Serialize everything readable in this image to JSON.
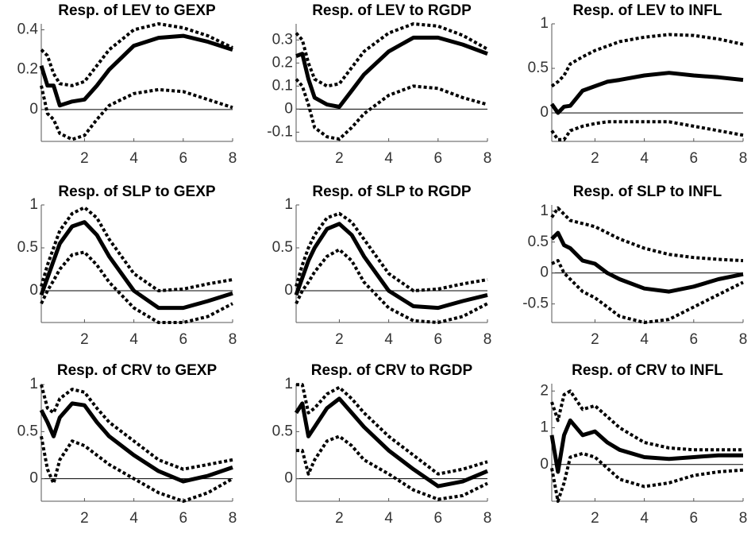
{
  "chart_data": [
    {
      "type": "line",
      "title": "Resp. of LEV to GEXP",
      "x": [
        0.25,
        0.5,
        0.75,
        1,
        1.5,
        2,
        2.5,
        3,
        4,
        5,
        6,
        7,
        8
      ],
      "xlim": [
        0.25,
        8
      ],
      "xticks": [
        2,
        4,
        6,
        8
      ],
      "ylim": [
        -0.16,
        0.43
      ],
      "yticks": [
        0,
        0.2,
        0.4
      ],
      "series": [
        {
          "color": "#000000",
          "dash": false,
          "values": [
            0.22,
            0.12,
            0.12,
            0.02,
            0.04,
            0.05,
            0.12,
            0.2,
            0.32,
            0.36,
            0.37,
            0.34,
            0.3
          ]
        },
        {
          "color": "#000000",
          "dash": true,
          "values": [
            0.3,
            0.27,
            0.18,
            0.13,
            0.12,
            0.14,
            0.22,
            0.3,
            0.4,
            0.43,
            0.41,
            0.37,
            0.31
          ]
        },
        {
          "color": "#000000",
          "dash": true,
          "values": [
            0.12,
            -0.02,
            -0.05,
            -0.12,
            -0.15,
            -0.13,
            -0.05,
            0.02,
            0.08,
            0.1,
            0.09,
            0.05,
            0.01
          ]
        }
      ]
    },
    {
      "type": "line",
      "title": "Resp. of LEV to RGDP",
      "x": [
        0.25,
        0.5,
        0.75,
        1,
        1.5,
        2,
        2.5,
        3,
        4,
        5,
        6,
        7,
        8
      ],
      "xlim": [
        0.25,
        8
      ],
      "xticks": [
        2,
        4,
        6,
        8
      ],
      "ylim": [
        -0.14,
        0.37
      ],
      "yticks": [
        -0.1,
        0,
        0.1,
        0.2,
        0.3
      ],
      "series": [
        {
          "color": "#000000",
          "dash": false,
          "values": [
            0.23,
            0.24,
            0.13,
            0.05,
            0.02,
            0.01,
            0.08,
            0.15,
            0.25,
            0.31,
            0.31,
            0.28,
            0.24
          ]
        },
        {
          "color": "#000000",
          "dash": true,
          "values": [
            0.33,
            0.3,
            0.2,
            0.13,
            0.1,
            0.11,
            0.18,
            0.25,
            0.33,
            0.37,
            0.36,
            0.32,
            0.26
          ]
        },
        {
          "color": "#000000",
          "dash": true,
          "values": [
            0.13,
            0.1,
            0.02,
            -0.08,
            -0.12,
            -0.13,
            -0.08,
            -0.02,
            0.06,
            0.1,
            0.09,
            0.05,
            0.02
          ]
        }
      ]
    },
    {
      "type": "line",
      "title": "Resp. of LEV to INFL",
      "x": [
        0.25,
        0.5,
        0.75,
        1,
        1.5,
        2,
        2.5,
        3,
        4,
        5,
        6,
        7,
        8
      ],
      "xlim": [
        0.25,
        8
      ],
      "xticks": [
        2,
        4,
        6,
        8
      ],
      "ylim": [
        -0.32,
        1
      ],
      "yticks": [
        0,
        0.5,
        1
      ],
      "series": [
        {
          "color": "#000000",
          "dash": false,
          "values": [
            0.1,
            0.0,
            0.07,
            0.08,
            0.25,
            0.3,
            0.35,
            0.37,
            0.42,
            0.45,
            0.42,
            0.4,
            0.37
          ]
        },
        {
          "color": "#000000",
          "dash": true,
          "values": [
            0.3,
            0.35,
            0.42,
            0.55,
            0.63,
            0.7,
            0.75,
            0.8,
            0.85,
            0.88,
            0.87,
            0.83,
            0.77
          ]
        },
        {
          "color": "#000000",
          "dash": true,
          "values": [
            -0.2,
            -0.3,
            -0.3,
            -0.2,
            -0.15,
            -0.12,
            -0.1,
            -0.1,
            -0.1,
            -0.1,
            -0.15,
            -0.2,
            -0.25
          ]
        }
      ]
    },
    {
      "type": "line",
      "title": "Resp. of SLP to GEXP",
      "x": [
        0.25,
        0.5,
        0.75,
        1,
        1.5,
        2,
        2.5,
        3,
        4,
        5,
        6,
        7,
        8
      ],
      "xlim": [
        0.25,
        8
      ],
      "xticks": [
        2,
        4,
        6,
        8
      ],
      "ylim": [
        -0.37,
        1
      ],
      "yticks": [
        0,
        0.5,
        1
      ],
      "series": [
        {
          "color": "#000000",
          "dash": false,
          "values": [
            -0.05,
            0.15,
            0.35,
            0.55,
            0.75,
            0.8,
            0.65,
            0.4,
            0,
            -0.2,
            -0.2,
            -0.12,
            -0.03
          ]
        },
        {
          "color": "#000000",
          "dash": true,
          "values": [
            0.05,
            0.3,
            0.5,
            0.7,
            0.9,
            0.97,
            0.85,
            0.6,
            0.2,
            0,
            0.02,
            0.08,
            0.13
          ]
        },
        {
          "color": "#000000",
          "dash": true,
          "values": [
            -0.15,
            0,
            0.12,
            0.25,
            0.42,
            0.45,
            0.3,
            0.1,
            -0.2,
            -0.37,
            -0.37,
            -0.3,
            -0.15
          ]
        }
      ]
    },
    {
      "type": "line",
      "title": "Resp. of SLP to RGDP",
      "x": [
        0.25,
        0.5,
        0.75,
        1,
        1.5,
        2,
        2.5,
        3,
        4,
        5,
        6,
        7,
        8
      ],
      "xlim": [
        0.25,
        8
      ],
      "xticks": [
        2,
        4,
        6,
        8
      ],
      "ylim": [
        -0.37,
        1
      ],
      "yticks": [
        0,
        0.5,
        1
      ],
      "series": [
        {
          "color": "#000000",
          "dash": false,
          "values": [
            -0.05,
            0.15,
            0.35,
            0.5,
            0.72,
            0.78,
            0.65,
            0.4,
            0,
            -0.18,
            -0.2,
            -0.12,
            -0.05
          ]
        },
        {
          "color": "#000000",
          "dash": true,
          "values": [
            0.05,
            0.3,
            0.5,
            0.65,
            0.85,
            0.9,
            0.8,
            0.6,
            0.2,
            0,
            0.02,
            0.08,
            0.13
          ]
        },
        {
          "color": "#000000",
          "dash": true,
          "values": [
            -0.15,
            0,
            0.1,
            0.22,
            0.4,
            0.48,
            0.35,
            0.1,
            -0.2,
            -0.35,
            -0.37,
            -0.3,
            -0.15
          ]
        }
      ]
    },
    {
      "type": "line",
      "title": "Resp. of SLP to INFL",
      "x": [
        0.25,
        0.5,
        0.75,
        1,
        1.5,
        2,
        2.5,
        3,
        4,
        5,
        6,
        7,
        8
      ],
      "xlim": [
        0.25,
        8
      ],
      "xticks": [
        2,
        4,
        6,
        8
      ],
      "ylim": [
        -0.8,
        1.1
      ],
      "yticks": [
        -0.5,
        0,
        0.5,
        1
      ],
      "series": [
        {
          "color": "#000000",
          "dash": false,
          "values": [
            0.55,
            0.65,
            0.45,
            0.4,
            0.2,
            0.15,
            0,
            -0.1,
            -0.25,
            -0.3,
            -0.22,
            -0.1,
            -0.02
          ]
        },
        {
          "color": "#000000",
          "dash": true,
          "values": [
            0.9,
            1.05,
            0.95,
            0.85,
            0.8,
            0.75,
            0.65,
            0.55,
            0.4,
            0.3,
            0.25,
            0.22,
            0.2
          ]
        },
        {
          "color": "#000000",
          "dash": true,
          "values": [
            0.15,
            0.2,
            0.0,
            -0.1,
            -0.3,
            -0.4,
            -0.55,
            -0.7,
            -0.8,
            -0.75,
            -0.55,
            -0.35,
            -0.15
          ]
        }
      ]
    },
    {
      "type": "line",
      "title": "Resp. of CRV to GEXP",
      "x": [
        0.25,
        0.5,
        0.75,
        1,
        1.5,
        2,
        2.5,
        3,
        4,
        5,
        6,
        7,
        8
      ],
      "xlim": [
        0.25,
        8
      ],
      "xticks": [
        2,
        4,
        6,
        8
      ],
      "ylim": [
        -0.24,
        1.01
      ],
      "yticks": [
        0,
        0.5,
        1
      ],
      "series": [
        {
          "color": "#000000",
          "dash": false,
          "values": [
            0.73,
            0.6,
            0.45,
            0.65,
            0.8,
            0.78,
            0.6,
            0.45,
            0.25,
            0.08,
            -0.03,
            0.03,
            0.12
          ]
        },
        {
          "color": "#000000",
          "dash": true,
          "values": [
            1.0,
            0.75,
            0.7,
            0.85,
            0.95,
            0.92,
            0.75,
            0.6,
            0.4,
            0.2,
            0.1,
            0.15,
            0.2
          ]
        },
        {
          "color": "#000000",
          "dash": true,
          "values": [
            0.45,
            0.1,
            -0.05,
            0.2,
            0.4,
            0.35,
            0.25,
            0.15,
            0,
            -0.15,
            -0.24,
            -0.15,
            0.0
          ]
        }
      ]
    },
    {
      "type": "line",
      "title": "Resp. of CRV to RGDP",
      "x": [
        0.25,
        0.5,
        0.75,
        1,
        1.5,
        2,
        2.5,
        3,
        4,
        5,
        6,
        7,
        8
      ],
      "xlim": [
        0.25,
        8
      ],
      "xticks": [
        2,
        4,
        6,
        8
      ],
      "ylim": [
        -0.24,
        1.01
      ],
      "yticks": [
        0,
        0.5,
        1
      ],
      "series": [
        {
          "color": "#000000",
          "dash": false,
          "values": [
            0.7,
            0.8,
            0.45,
            0.55,
            0.75,
            0.85,
            0.7,
            0.55,
            0.3,
            0.1,
            -0.08,
            -0.03,
            0.08
          ]
        },
        {
          "color": "#000000",
          "dash": true,
          "values": [
            1.0,
            1.0,
            0.7,
            0.75,
            0.9,
            0.97,
            0.85,
            0.7,
            0.45,
            0.25,
            0.05,
            0.1,
            0.18
          ]
        },
        {
          "color": "#000000",
          "dash": true,
          "values": [
            0.3,
            0.3,
            0.05,
            0.2,
            0.4,
            0.45,
            0.35,
            0.2,
            0.05,
            -0.12,
            -0.22,
            -0.18,
            -0.05
          ]
        }
      ]
    },
    {
      "type": "line",
      "title": "Resp. of CRV to INFL",
      "x": [
        0.25,
        0.5,
        0.75,
        1,
        1.5,
        2,
        2.5,
        3,
        4,
        5,
        6,
        7,
        8
      ],
      "xlim": [
        0.25,
        8
      ],
      "xticks": [
        2,
        4,
        6,
        8
      ],
      "ylim": [
        -1,
        2.2
      ],
      "yticks": [
        0,
        1,
        2
      ],
      "series": [
        {
          "color": "#000000",
          "dash": false,
          "values": [
            0.8,
            -0.2,
            0.8,
            1.2,
            0.8,
            0.9,
            0.6,
            0.4,
            0.2,
            0.15,
            0.2,
            0.25,
            0.25
          ]
        },
        {
          "color": "#000000",
          "dash": true,
          "values": [
            1.7,
            1.2,
            1.9,
            2.0,
            1.5,
            1.6,
            1.3,
            1.0,
            0.6,
            0.45,
            0.4,
            0.4,
            0.4
          ]
        },
        {
          "color": "#000000",
          "dash": true,
          "values": [
            -0.1,
            -1.0,
            -0.5,
            0.2,
            0.3,
            0.2,
            -0.1,
            -0.4,
            -0.6,
            -0.5,
            -0.3,
            -0.2,
            -0.15
          ]
        }
      ]
    }
  ]
}
